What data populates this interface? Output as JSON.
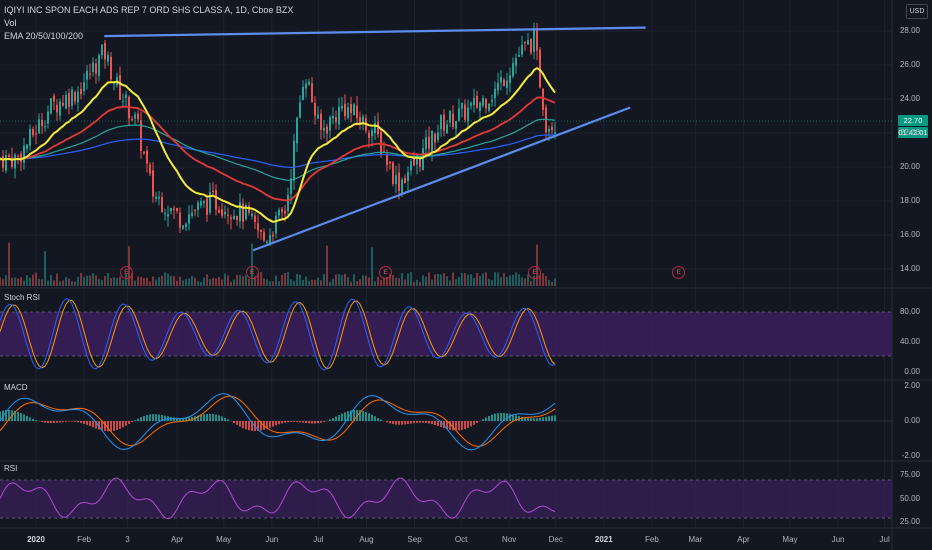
{
  "header": {
    "symbol_line": "IQIYI INC SPON EACH ADS REP 7 ORD SHS CLASS A, 1D, Cboe BZX",
    "vol_label": "Vol",
    "ema_label": "EMA 20/50/100/200"
  },
  "currency": "USD",
  "price_axis": [
    "28.00",
    "26.00",
    "24.00",
    "22.00",
    "20.00",
    "18.00",
    "16.00",
    "14.00"
  ],
  "last_price": "22.70",
  "countdown": "01:42:01",
  "stoch": {
    "label": "Stoch RSI",
    "ticks": [
      "80.00",
      "40.00",
      "0.00"
    ]
  },
  "macd": {
    "label": "MACD",
    "ticks": [
      "2.00",
      "0.00",
      "-2.00"
    ]
  },
  "rsi": {
    "label": "RSI",
    "ticks": [
      "75.00",
      "50.00",
      "25.00"
    ]
  },
  "earnings_marker": "E",
  "time_axis": [
    {
      "label": "2020",
      "bold": true
    },
    {
      "label": "Feb",
      "bold": false
    },
    {
      "label": "3",
      "bold": false
    },
    {
      "label": "Apr",
      "bold": false
    },
    {
      "label": "May",
      "bold": false
    },
    {
      "label": "Jun",
      "bold": false
    },
    {
      "label": "Jul",
      "bold": false
    },
    {
      "label": "Aug",
      "bold": false
    },
    {
      "label": "Sep",
      "bold": false
    },
    {
      "label": "Oct",
      "bold": false
    },
    {
      "label": "Nov",
      "bold": false
    },
    {
      "label": "Dec",
      "bold": false
    },
    {
      "label": "2021",
      "bold": true
    },
    {
      "label": "Feb",
      "bold": false
    },
    {
      "label": "Mar",
      "bold": false
    },
    {
      "label": "Apr",
      "bold": false
    },
    {
      "label": "May",
      "bold": false
    },
    {
      "label": "Jun",
      "bold": false
    },
    {
      "label": "Jul",
      "bold": false
    }
  ],
  "colors": {
    "background": "#131722",
    "up": "#26a69a",
    "down": "#ef5350",
    "trendline": "#5b8def",
    "ema20": "#f5eb3b",
    "ema50": "#e53935",
    "ema100": "#26a69a",
    "ema200": "#2962ff",
    "band_fill": "#3a1f5c",
    "rsi_line": "#b14bd1"
  },
  "chart_data": {
    "type": "candlestick",
    "price_range": [
      13.5,
      28.5
    ],
    "price_series": [
      {
        "date": "2019-12-20",
        "price": 20.5
      },
      {
        "date": "2020-01-10",
        "price": 23.5
      },
      {
        "date": "2020-01-28",
        "price": 24.5
      },
      {
        "date": "2020-02-14",
        "price": 26.8
      },
      {
        "date": "2020-02-21",
        "price": 25.0
      },
      {
        "date": "2020-03-06",
        "price": 22.5
      },
      {
        "date": "2020-03-16",
        "price": 18.5
      },
      {
        "date": "2020-04-03",
        "price": 17.0
      },
      {
        "date": "2020-04-24",
        "price": 18.0
      },
      {
        "date": "2020-05-15",
        "price": 17.2
      },
      {
        "date": "2020-05-27",
        "price": 15.7
      },
      {
        "date": "2020-06-10",
        "price": 17.5
      },
      {
        "date": "2020-06-22",
        "price": 25.8
      },
      {
        "date": "2020-07-02",
        "price": 22.0
      },
      {
        "date": "2020-07-17",
        "price": 23.6
      },
      {
        "date": "2020-08-07",
        "price": 22.0
      },
      {
        "date": "2020-08-21",
        "price": 19.0
      },
      {
        "date": "2020-09-04",
        "price": 20.5
      },
      {
        "date": "2020-09-18",
        "price": 22.5
      },
      {
        "date": "2020-10-09",
        "price": 23.5
      },
      {
        "date": "2020-10-23",
        "price": 24.5
      },
      {
        "date": "2020-11-06",
        "price": 26.5
      },
      {
        "date": "2020-11-17",
        "price": 27.5
      },
      {
        "date": "2020-11-25",
        "price": 22.5
      },
      {
        "date": "2020-12-02",
        "price": 22.7
      }
    ],
    "trendlines": [
      {
        "from": {
          "date": "2020-02-14",
          "price": 27.7
        },
        "to": {
          "date": "2021-01-28",
          "price": 28.2
        }
      },
      {
        "from": {
          "date": "2020-05-20",
          "price": 15.1
        },
        "to": {
          "date": "2021-01-18",
          "price": 23.5
        }
      }
    ],
    "earnings_dates": [
      "2020-02-28",
      "2020-05-19",
      "2020-08-13",
      "2020-11-17",
      "2021-02-18"
    ]
  }
}
